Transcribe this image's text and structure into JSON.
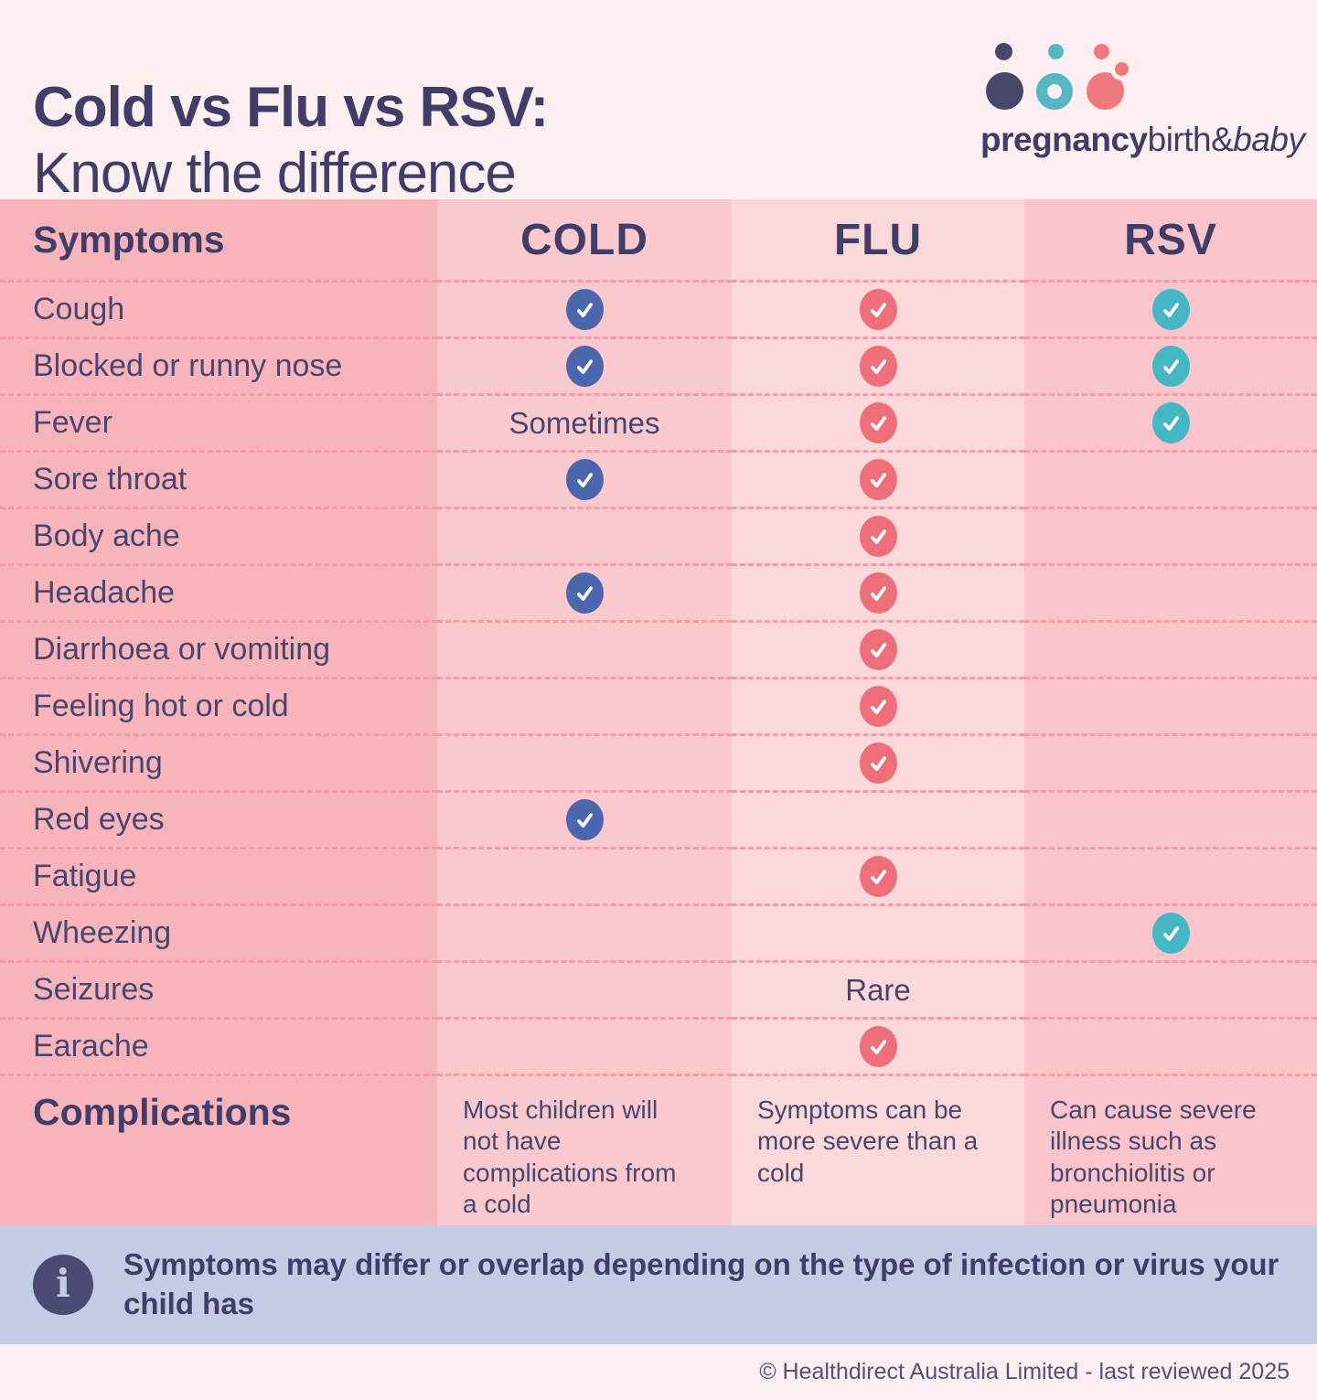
{
  "title": {
    "line1": "Cold vs Flu vs RSV:",
    "line2": "Know the difference"
  },
  "logo": {
    "brand_bold": "pregnancy",
    "brand_regular": "birth&",
    "brand_italic": "baby"
  },
  "table": {
    "headers": {
      "symptoms": "Symptoms",
      "cold": "COLD",
      "flu": "FLU",
      "rsv": "RSV"
    },
    "rows": [
      {
        "label": "Cough",
        "cold": "check",
        "flu": "check",
        "rsv": "check"
      },
      {
        "label": "Blocked or runny nose",
        "cold": "check",
        "flu": "check",
        "rsv": "check"
      },
      {
        "label": "Fever",
        "cold": "Sometimes",
        "flu": "check",
        "rsv": "check"
      },
      {
        "label": "Sore throat",
        "cold": "check",
        "flu": "check",
        "rsv": ""
      },
      {
        "label": "Body ache",
        "cold": "",
        "flu": "check",
        "rsv": ""
      },
      {
        "label": "Headache",
        "cold": "check",
        "flu": "check",
        "rsv": ""
      },
      {
        "label": "Diarrhoea or vomiting",
        "cold": "",
        "flu": "check",
        "rsv": ""
      },
      {
        "label": "Feeling hot or cold",
        "cold": "",
        "flu": "check",
        "rsv": ""
      },
      {
        "label": "Shivering",
        "cold": "",
        "flu": "check",
        "rsv": ""
      },
      {
        "label": "Red eyes",
        "cold": "check",
        "flu": "",
        "rsv": ""
      },
      {
        "label": "Fatigue",
        "cold": "",
        "flu": "check",
        "rsv": ""
      },
      {
        "label": "Wheezing",
        "cold": "",
        "flu": "",
        "rsv": "check"
      },
      {
        "label": "Seizures",
        "cold": "",
        "flu": "Rare",
        "rsv": ""
      },
      {
        "label": "Earache",
        "cold": "",
        "flu": "check",
        "rsv": ""
      }
    ],
    "complications": {
      "label": "Complications",
      "cold": "Most children will not have complications from a cold",
      "flu": "Symptoms can be more severe than a cold",
      "rsv": "Can cause severe illness such as bronchiolitis or pneumonia"
    }
  },
  "banner": {
    "icon": "info-icon",
    "text": "Symptoms may differ or overlap depending on the type of infection or virus your child has"
  },
  "footer": {
    "copyright": "© Healthdirect Australia Limited - last reviewed 2025"
  },
  "colors": {
    "page_bg": "#fdeef0",
    "navy": "#48466f",
    "navy_bold": "#403e68",
    "col_symptom": "#f8b4bb",
    "col_cold": "#fac9cd",
    "col_flu": "#fbd8da",
    "col_rsv": "#f9c5ca",
    "dash": "#f19ca7",
    "check_cold": "#4a67ae",
    "check_flu": "#ee6f79",
    "check_rsv": "#45b6c3",
    "banner_bg": "#c4cbe5",
    "banner_icon": "#4b4a72",
    "logo_navy": "#474769",
    "logo_teal": "#56b7c4",
    "logo_coral": "#f0797f"
  },
  "chart_data": {
    "type": "table",
    "title": "Cold vs Flu vs RSV: Know the difference",
    "columns": [
      "Symptoms",
      "COLD",
      "FLU",
      "RSV"
    ],
    "rows": [
      [
        "Cough",
        "check",
        "check",
        "check"
      ],
      [
        "Blocked or runny nose",
        "check",
        "check",
        "check"
      ],
      [
        "Fever",
        "Sometimes",
        "check",
        "check"
      ],
      [
        "Sore throat",
        "check",
        "check",
        ""
      ],
      [
        "Body ache",
        "",
        "check",
        ""
      ],
      [
        "Headache",
        "check",
        "check",
        ""
      ],
      [
        "Diarrhoea or vomiting",
        "",
        "check",
        ""
      ],
      [
        "Feeling hot or cold",
        "",
        "check",
        ""
      ],
      [
        "Shivering",
        "",
        "check",
        ""
      ],
      [
        "Red eyes",
        "check",
        "",
        ""
      ],
      [
        "Fatigue",
        "",
        "check",
        ""
      ],
      [
        "Wheezing",
        "",
        "",
        "check"
      ],
      [
        "Seizures",
        "",
        "Rare",
        ""
      ],
      [
        "Earache",
        "",
        "check",
        ""
      ],
      [
        "Complications",
        "Most children will not have complications from a cold",
        "Symptoms can be more severe than a cold",
        "Can cause severe illness such as bronchiolitis or pneumonia"
      ]
    ],
    "legend_position": "none",
    "grid": "dashed-row-separators"
  }
}
